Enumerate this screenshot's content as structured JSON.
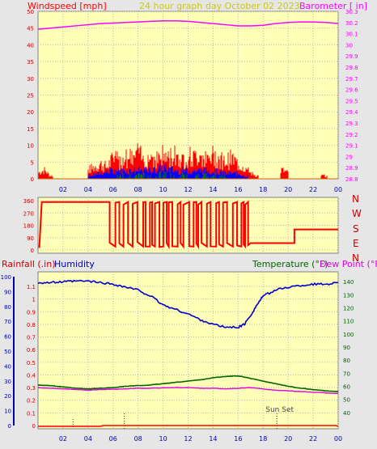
{
  "header": {
    "left_label": "Windspeed [mph]",
    "title": "24 hour graph day   October 02 2023",
    "right_label": "Barometer [ in]"
  },
  "middle": {
    "directions": [
      "N",
      "W",
      "S",
      "E",
      "N"
    ]
  },
  "bottom": {
    "rain_label": "Rainfall (.in)",
    "humidity_label": "Humidity",
    "temp_label": "Temperature (°F)",
    "dew_label": "Dew Point (°F)",
    "annotation": "Sun Set"
  },
  "colors": {
    "plot_bg": "#ffffb8",
    "page_bg": "#e6e6e6",
    "grid": "#b8b8b8",
    "wind": "#ff0000",
    "gust_inner": "#0000ff",
    "wind_green": "#008000",
    "barometer": "#ff00ff",
    "humidity": "#0000cc",
    "temperature": "#006400",
    "dewpoint": "#e000e0",
    "rain": "#ff0000",
    "axis_label_blue": "#0000aa"
  },
  "chart_data": [
    {
      "type": "bar",
      "title": "24 hour graph day   October 02 2023",
      "x_ticks": [
        "02",
        "04",
        "06",
        "08",
        "10",
        "12",
        "14",
        "16",
        "18",
        "20",
        "22",
        "00"
      ],
      "x_range_hours": [
        0,
        24
      ],
      "y_left": {
        "label": "Windspeed [mph]",
        "range": [
          0,
          50
        ],
        "ticks": [
          "0",
          "5",
          "10",
          "15",
          "20",
          "25",
          "30",
          "35",
          "40",
          "45",
          "50"
        ]
      },
      "y_right": {
        "label": "Barometer [ in]",
        "range": [
          28.8,
          30.3
        ],
        "ticks": [
          "28.8",
          "28.9",
          "29",
          "29.1",
          "29.2",
          "29.3",
          "29.4",
          "29.5",
          "29.6",
          "29.7",
          "29.8",
          "29.9",
          "30",
          "30.1",
          "30.2",
          "30.3"
        ]
      },
      "barometer_series": {
        "x": [
          0,
          1,
          2,
          3,
          4,
          5,
          6,
          7,
          8,
          9,
          10,
          11,
          12,
          13,
          14,
          15,
          16,
          17,
          18,
          19,
          20,
          21,
          22,
          23,
          24
        ],
        "values": [
          30.14,
          30.15,
          30.16,
          30.17,
          30.18,
          30.19,
          30.195,
          30.2,
          30.205,
          30.21,
          30.215,
          30.215,
          30.21,
          30.2,
          30.19,
          30.18,
          30.17,
          30.17,
          30.175,
          30.19,
          30.2,
          30.205,
          30.205,
          30.2,
          30.19
        ]
      },
      "wind_gust_envelope": {
        "x": [
          0,
          0.5,
          1,
          4,
          4.5,
          5,
          5.5,
          6,
          6.5,
          7,
          7.5,
          8,
          8.5,
          9,
          9.5,
          10,
          10.5,
          11,
          11.5,
          12,
          12.5,
          13,
          13.5,
          14,
          14.5,
          15,
          15.5,
          16,
          16.5,
          17,
          17.5,
          19.5,
          20,
          23
        ],
        "values": [
          2,
          3,
          1,
          3,
          4,
          5,
          4,
          7,
          6,
          8,
          7,
          9,
          6,
          8,
          7,
          8,
          7,
          9,
          6,
          8,
          7,
          9,
          6,
          8,
          7,
          6,
          7,
          5,
          4,
          2,
          1,
          3,
          2,
          1
        ]
      },
      "wind_average_envelope": {
        "x": [
          4,
          5,
          6,
          7,
          8,
          9,
          10,
          11,
          12,
          13,
          14,
          15,
          16,
          16.5
        ],
        "values": [
          1,
          2,
          3,
          3,
          3,
          3,
          4,
          3,
          3,
          3,
          3,
          2,
          2,
          1
        ]
      }
    },
    {
      "type": "line",
      "title": "",
      "y_range": [
        0,
        360
      ],
      "y_ticks": [
        "0",
        "90",
        "180",
        "270",
        "360"
      ],
      "direction_labels": [
        "N",
        "W",
        "S",
        "E",
        "N"
      ],
      "segments": [
        {
          "from_hour": 0,
          "to_hour": 0.3,
          "value": 10
        },
        {
          "from_hour": 0.3,
          "to_hour": 5.4,
          "value": 350
        },
        {
          "from_hour": 5.4,
          "to_hour": 16.8,
          "value": "varying 20-350"
        },
        {
          "from_hour": 16.8,
          "to_hour": 20.5,
          "value": 50
        },
        {
          "from_hour": 20.5,
          "to_hour": 24,
          "value": 150
        }
      ]
    },
    {
      "type": "line",
      "title": "",
      "x_ticks": [
        "02",
        "04",
        "06",
        "08",
        "10",
        "12",
        "14",
        "16",
        "18",
        "20",
        "22",
        "00"
      ],
      "x_range_hours": [
        0,
        24
      ],
      "y_left_rain": {
        "label": "Rainfall (.in)",
        "range": [
          0,
          1.1
        ],
        "ticks": [
          "0",
          "0.1",
          "0.2",
          "0.3",
          "0.4",
          "0.5",
          "0.6",
          "0.7",
          "0.8",
          "0.9",
          "1",
          "1.1"
        ]
      },
      "y_left_humidity": {
        "label": "Humidity",
        "range": [
          0,
          100
        ],
        "ticks": [
          "0",
          "10",
          "20",
          "30",
          "40",
          "50",
          "60",
          "70",
          "80",
          "90",
          "100"
        ]
      },
      "y_right_temp": {
        "label": "Temperature (°F)",
        "range": [
          30,
          145
        ],
        "ticks": [
          "40",
          "50",
          "60",
          "70",
          "80",
          "90",
          "100",
          "110",
          "120",
          "130",
          "140"
        ]
      },
      "series": [
        {
          "name": "Humidity",
          "x": [
            0,
            1,
            2,
            3,
            4,
            5,
            6,
            7,
            8,
            9,
            10,
            11,
            12,
            13,
            14,
            15,
            16,
            16.5,
            17,
            17.5,
            18,
            19,
            20,
            21,
            22,
            23,
            24
          ],
          "values": [
            96,
            96,
            96.5,
            97,
            97,
            96,
            95,
            93,
            91,
            87,
            81,
            78,
            75,
            71,
            68,
            66,
            66,
            68,
            74,
            81,
            87,
            91,
            93,
            94,
            95,
            95,
            96
          ]
        },
        {
          "name": "Temperature (°F)",
          "x": [
            0,
            1,
            2,
            3,
            4,
            5,
            6,
            7,
            8,
            9,
            10,
            11,
            12,
            13,
            14,
            15,
            16,
            17,
            18,
            19,
            20,
            21,
            22,
            23,
            24
          ],
          "values": [
            61,
            60.5,
            59.5,
            58.5,
            58,
            58.5,
            59,
            60,
            60.5,
            61,
            62,
            63,
            64,
            65,
            66.5,
            67.5,
            68,
            66,
            64,
            62,
            60,
            58.5,
            57.5,
            56.5,
            56
          ]
        },
        {
          "name": "Dew Point (°F)",
          "x": [
            0,
            1,
            2,
            3,
            4,
            5,
            6,
            7,
            8,
            9,
            10,
            11,
            12,
            13,
            14,
            15,
            16,
            17,
            18,
            19,
            20,
            21,
            22,
            23,
            24
          ],
          "values": [
            59,
            58.5,
            58,
            57.5,
            57,
            57.5,
            57.8,
            58,
            58.5,
            58.5,
            58.8,
            59,
            59,
            58.5,
            58.5,
            58,
            58.5,
            59,
            58,
            57,
            56.5,
            56,
            55.5,
            55,
            54.5
          ]
        },
        {
          "name": "Rainfall (.in)",
          "x": [
            0,
            5,
            5.2,
            23.8,
            24
          ],
          "values": [
            0,
            0,
            0.005,
            0.005,
            0
          ]
        }
      ],
      "annotations": [
        {
          "text": "Sun Set",
          "x_hour": 19.1
        }
      ]
    }
  ]
}
